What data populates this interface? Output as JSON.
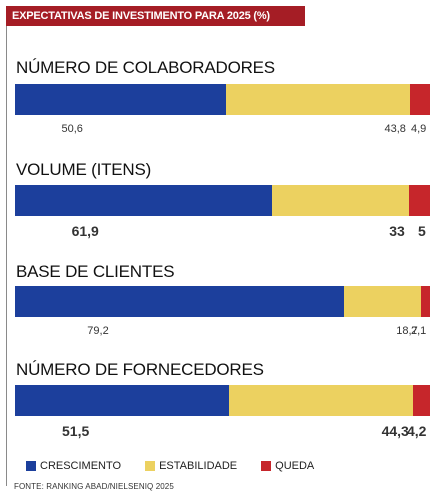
{
  "header": {
    "title": "EXPECTATIVAS DE INVESTIMENTO PARA 2025 (%)"
  },
  "colors": {
    "crescimento": "#1c3f9c",
    "estabilidade": "#ecd160",
    "queda": "#c6262b",
    "header_bg": "#a51d25"
  },
  "chart_data": {
    "type": "bar",
    "stacked": true,
    "orientation": "horizontal",
    "title": "EXPECTATIVAS DE INVESTIMENTO PARA 2025 (%)",
    "categories": [
      "NÚMERO DE COLABORADORES",
      "VOLUME (ITENS)",
      "BASE DE CLIENTES",
      "NÚMERO DE FORNECEDORES"
    ],
    "series": [
      {
        "name": "CRESCIMENTO",
        "color": "#1c3f9c",
        "values": [
          50.6,
          61.9,
          79.2,
          51.5
        ],
        "labels": [
          "50,6",
          "61,9",
          "79,2",
          "51,5"
        ]
      },
      {
        "name": "ESTABILIDADE",
        "color": "#ecd160",
        "values": [
          43.8,
          33,
          18.7,
          44.3
        ],
        "labels": [
          "43,8",
          "33",
          "18,7",
          "44,3"
        ]
      },
      {
        "name": "QUEDA",
        "color": "#c6262b",
        "values": [
          4.9,
          5,
          2.1,
          4.2
        ],
        "labels": [
          "4,9",
          "5",
          "2,1",
          "4,2"
        ]
      }
    ],
    "legend_position": "bottom-left",
    "grid": false
  },
  "source": "FONTE: RANKING ABAD/NIELSENIQ 2025"
}
